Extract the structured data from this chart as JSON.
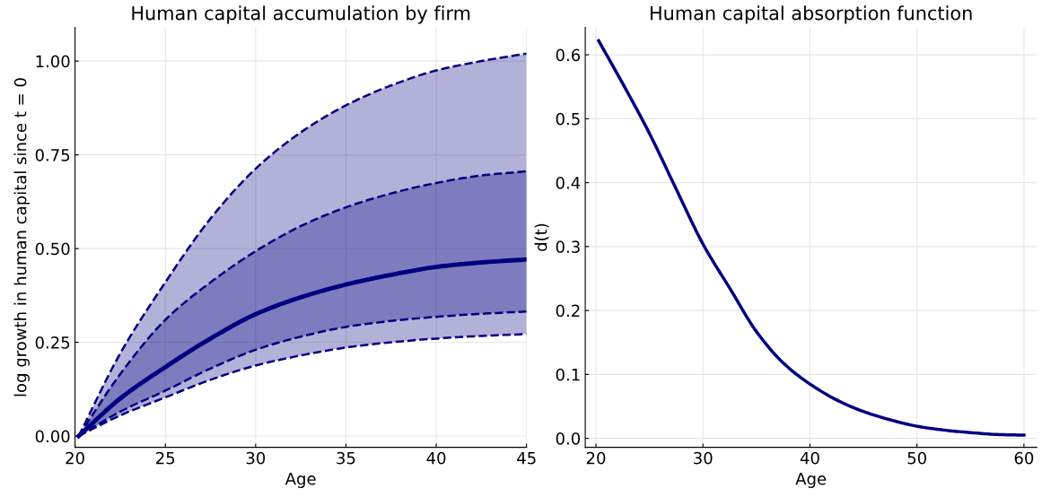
{
  "chart_data": [
    {
      "type": "line",
      "title": "Human capital accumulation by firm",
      "xlabel": "Age",
      "ylabel": "log growth in human capital since t = 0",
      "x": [
        20.2,
        22.5,
        25,
        27.5,
        30,
        32.5,
        35,
        37.5,
        40,
        42.5,
        45
      ],
      "xlim": [
        20,
        45
      ],
      "xticks": [
        20,
        25,
        30,
        35,
        40,
        45
      ],
      "ylim": [
        -0.03,
        1.09
      ],
      "yticks": [
        {
          "value": 0,
          "label": "0.00"
        },
        {
          "value": 0.25,
          "label": "0.25"
        },
        {
          "value": 0.5,
          "label": "0.50"
        },
        {
          "value": 0.75,
          "label": "0.75"
        },
        {
          "value": 1,
          "label": "1.00"
        }
      ],
      "grid": true,
      "legend": false,
      "series": [
        {
          "color": "#000080",
          "line_style": "dashed",
          "values": [
            0,
            0.22,
            0.41,
            0.58,
            0.713,
            0.81,
            0.882,
            0.935,
            0.975,
            1.0,
            1.02
          ],
          "lower": [
            0,
            0.055,
            0.103,
            0.15,
            0.188,
            0.215,
            0.236,
            0.25,
            0.26,
            0.267,
            0.272
          ],
          "upper": [
            0,
            0.22,
            0.41,
            0.58,
            0.713,
            0.81,
            0.882,
            0.935,
            0.975,
            1.0,
            1.02
          ]
        },
        {
          "color": "#000080",
          "line_style": "dashed",
          "values": [
            0,
            0.165,
            0.31,
            0.41,
            0.493,
            0.56,
            0.61,
            0.647,
            0.675,
            0.695,
            0.706
          ],
          "lower": [
            0,
            0.065,
            0.121,
            0.18,
            0.23,
            0.265,
            0.291,
            0.307,
            0.318,
            0.326,
            0.332
          ],
          "upper": [
            0,
            0.165,
            0.31,
            0.41,
            0.493,
            0.56,
            0.61,
            0.647,
            0.675,
            0.695,
            0.706
          ]
        },
        {
          "color": "#000080",
          "line_style": "solid",
          "values": [
            0,
            0.1,
            0.184,
            0.26,
            0.325,
            0.37,
            0.404,
            0.43,
            0.451,
            0.463,
            0.471
          ]
        },
        {
          "color": "#000080",
          "line_style": "dashed",
          "values": [
            0,
            0.065,
            0.121,
            0.18,
            0.23,
            0.265,
            0.291,
            0.307,
            0.318,
            0.326,
            0.332
          ]
        },
        {
          "color": "#000080",
          "line_style": "dashed",
          "values": [
            0,
            0.055,
            0.103,
            0.15,
            0.188,
            0.215,
            0.236,
            0.25,
            0.26,
            0.267,
            0.272
          ]
        }
      ]
    },
    {
      "type": "line",
      "title": "Human capital absorption function",
      "xlabel": "Age",
      "ylabel": "d(t)",
      "x": [
        20.25,
        22.5,
        25,
        27.5,
        30,
        32.5,
        35,
        37.5,
        40,
        42.5,
        45,
        47.5,
        50,
        52.5,
        55,
        57.5,
        60
      ],
      "xlim": [
        19.0,
        61.2
      ],
      "xticks": [
        20,
        30,
        40,
        50,
        60
      ],
      "ylim": [
        -0.014,
        0.643
      ],
      "yticks": [
        {
          "value": 0,
          "label": "0.0"
        },
        {
          "value": 0.1,
          "label": "0.1"
        },
        {
          "value": 0.2,
          "label": "0.2"
        },
        {
          "value": 0.3,
          "label": "0.3"
        },
        {
          "value": 0.4,
          "label": "0.4"
        },
        {
          "value": 0.5,
          "label": "0.5"
        },
        {
          "value": 0.6,
          "label": "0.6"
        }
      ],
      "grid": true,
      "legend": false,
      "series": [
        {
          "color": "#000080",
          "line_style": "solid",
          "values": [
            0.622,
            0.555,
            0.477,
            0.39,
            0.304,
            0.235,
            0.167,
            0.118,
            0.085,
            0.06,
            0.042,
            0.029,
            0.019,
            0.013,
            0.009,
            0.006,
            0.005
          ]
        }
      ]
    }
  ]
}
